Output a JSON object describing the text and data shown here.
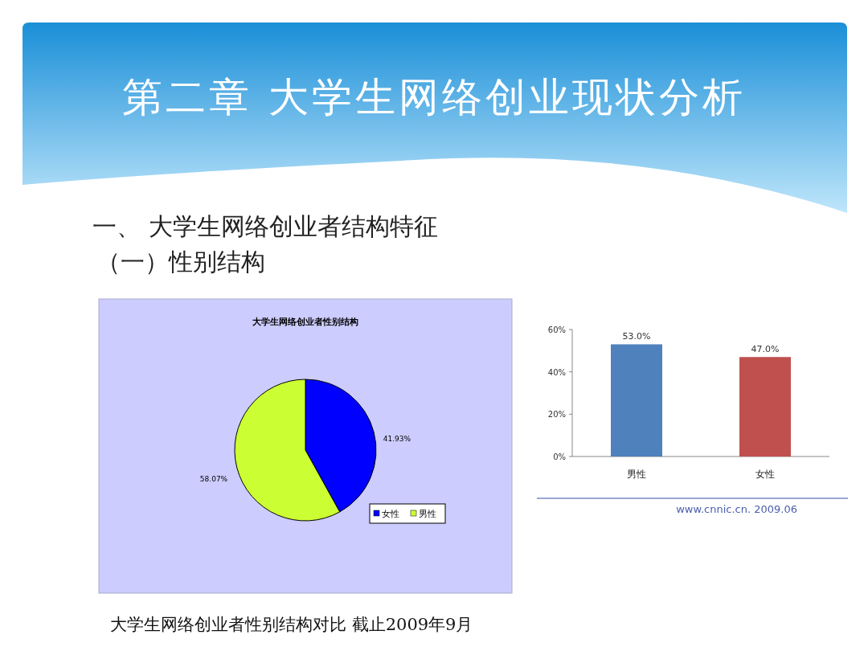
{
  "chart_data": [
    {
      "type": "other",
      "title": "第二章  大学生网络创业现状分析",
      "annotations": [
        "一、 大学生网络创业者结构特征",
        "（一）性别结构"
      ]
    },
    {
      "type": "pie",
      "title": "大学生网络创业者性别结构",
      "categories": [
        "女性",
        "男性"
      ],
      "values": [
        41.93,
        58.07
      ],
      "colors": [
        "#0000ff",
        "#ccff33"
      ],
      "value_labels": [
        "41.93%",
        "58.07%"
      ],
      "legend": "bottom right",
      "annotations": [
        "大学生网络创业者性别结构对比 截止2009年9月"
      ]
    },
    {
      "type": "bar",
      "categories": [
        "男性",
        "女性"
      ],
      "values": [
        53.0,
        47.0
      ],
      "colors": [
        "#4f81bd",
        "#c0504d"
      ],
      "value_labels": [
        "53.0%",
        "47.0%"
      ],
      "ylim": [
        0,
        60
      ],
      "yticks": [
        {
          "value": 0,
          "label": "0%"
        },
        {
          "value": 20,
          "label": "20%"
        },
        {
          "value": 40,
          "label": "40%"
        },
        {
          "value": 60,
          "label": "60%"
        }
      ],
      "annotations": [
        "www.cnnic.cn. 2009.06"
      ]
    }
  ]
}
